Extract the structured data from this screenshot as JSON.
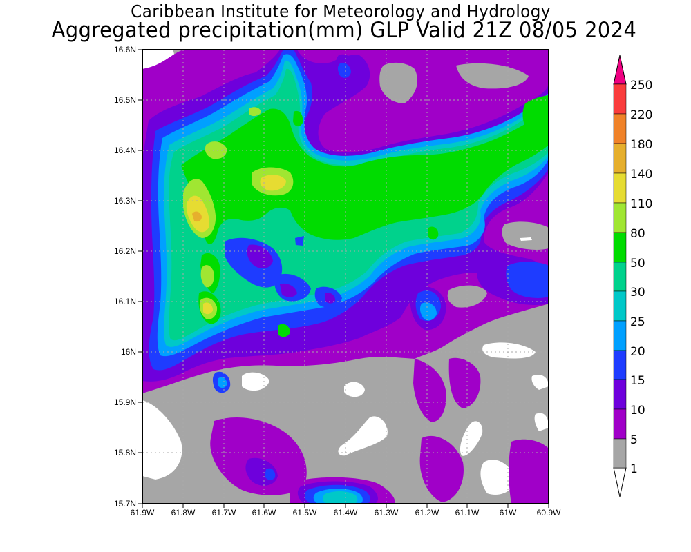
{
  "header": {
    "title_line1": "Caribbean Institute for Meteorology and Hydrology",
    "title_line2": "Aggregated precipitation(mm) GLP Valid 21Z 08/05 2024"
  },
  "map": {
    "lon_ticks": [
      "61.9W",
      "61.8W",
      "61.7W",
      "61.6W",
      "61.5W",
      "61.4W",
      "61.3W",
      "61.2W",
      "61.1W",
      "61W",
      "60.9W"
    ],
    "lat_ticks": [
      "15.7N",
      "15.8N",
      "15.9N",
      "16N",
      "16.1N",
      "16.2N",
      "16.3N",
      "16.4N",
      "16.5N",
      "16.6N"
    ],
    "lon_range": [
      -61.9,
      -60.9
    ],
    "lat_range": [
      15.7,
      16.6
    ]
  },
  "legend": {
    "thresholds": [
      "1",
      "5",
      "10",
      "15",
      "20",
      "25",
      "30",
      "50",
      "80",
      "110",
      "140",
      "180",
      "220",
      "250"
    ],
    "colors": [
      "#ffffff",
      "#a6a6a6",
      "#a000c8",
      "#6e00dc",
      "#1e3cff",
      "#00a0ff",
      "#00c8c8",
      "#00d28c",
      "#00dc00",
      "#a0e632",
      "#e6dc32",
      "#e6af2d",
      "#f08228",
      "#fa3c3c",
      "#f00082"
    ],
    "units": "mm"
  }
}
